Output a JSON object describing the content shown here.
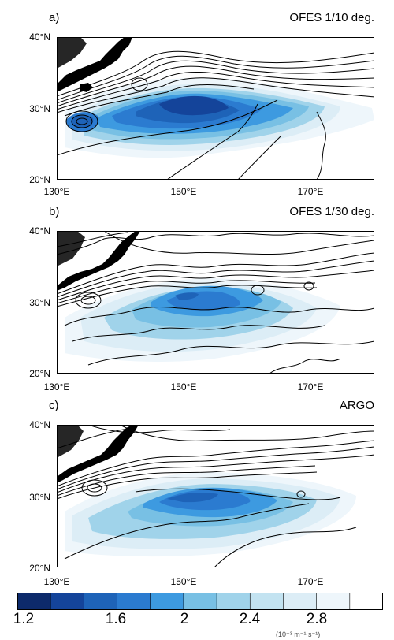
{
  "panels": [
    {
      "letter": "a)",
      "title": "OFES 1/10 deg.",
      "lat_labels": [
        "40°N",
        "30°N",
        "20°N"
      ],
      "lon_labels": [
        "130°E",
        "150°E",
        "170°E"
      ],
      "colors": {
        "land": "#000000",
        "contour": "#000000"
      }
    },
    {
      "letter": "b)",
      "title": "OFES 1/30 deg.",
      "lat_labels": [
        "40°N",
        "30°N",
        "20°N"
      ],
      "lon_labels": [
        "130°E",
        "150°E",
        "170°E"
      ],
      "colors": {
        "land": "#000000",
        "contour": "#000000"
      }
    },
    {
      "letter": "c)",
      "title": "ARGO",
      "lat_labels": [
        "40°N",
        "30°N",
        "20°N"
      ],
      "lon_labels": [
        "130°E",
        "150°E",
        "170°E"
      ],
      "colors": {
        "land": "#000000",
        "contour": "#000000"
      }
    }
  ],
  "colorbar": {
    "colors": [
      "#0d2a6b",
      "#14449a",
      "#1e63b8",
      "#2b7bd0",
      "#3d9ae0",
      "#78c0e4",
      "#a0d3ea",
      "#c3e3f1",
      "#dcedf6",
      "#eef6fb",
      "#ffffff"
    ],
    "labels": [
      "1.2",
      "1.6",
      "2",
      "2.4",
      "2.8"
    ],
    "units": "(10⁻³ m⁻¹ s⁻¹)"
  }
}
